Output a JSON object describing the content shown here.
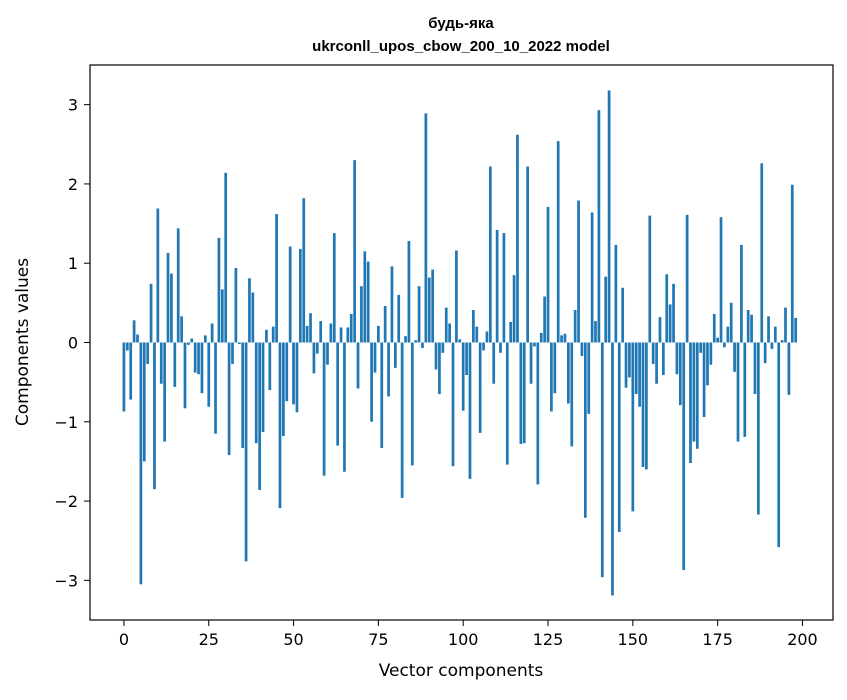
{
  "chart_data": {
    "type": "bar",
    "title_line1": "будь-яка",
    "title_line2": "ukrconll_upos_cbow_200_10_2022 model",
    "xlabel": "Vector components",
    "ylabel": "Components values",
    "xlim": [
      -10,
      209
    ],
    "ylim": [
      -3.5,
      3.5
    ],
    "x_ticks": [
      0,
      25,
      50,
      75,
      100,
      125,
      150,
      175,
      200
    ],
    "x_tick_labels": [
      "0",
      "25",
      "50",
      "75",
      "100",
      "125",
      "150",
      "175",
      "200"
    ],
    "y_ticks": [
      -3,
      -2,
      -1,
      0,
      1,
      2,
      3
    ],
    "y_tick_labels": [
      "−3",
      "−2",
      "−1",
      "0",
      "1",
      "2",
      "3"
    ],
    "bar_color": "#1f77b4",
    "grid": false,
    "values": [
      -0.87,
      -0.1,
      -0.72,
      0.28,
      0.1,
      -3.05,
      -1.5,
      -0.27,
      0.74,
      -1.85,
      1.69,
      -0.52,
      -1.25,
      1.13,
      0.87,
      -0.56,
      1.44,
      0.33,
      -0.83,
      -0.03,
      0.05,
      -0.38,
      -0.4,
      -0.64,
      0.09,
      -0.81,
      0.24,
      -1.15,
      1.32,
      0.67,
      2.14,
      -1.42,
      -0.27,
      0.94,
      -0.02,
      -1.33,
      -2.76,
      0.81,
      0.63,
      -1.27,
      -1.86,
      -1.13,
      0.16,
      -0.6,
      0.2,
      1.62,
      -2.09,
      -1.18,
      -0.74,
      1.21,
      -0.78,
      -0.88,
      1.18,
      1.82,
      0.21,
      0.37,
      -0.39,
      -0.14,
      0.27,
      -1.68,
      -0.28,
      0.24,
      1.38,
      -1.3,
      0.19,
      -1.63,
      0.19,
      0.36,
      2.3,
      -0.58,
      0.71,
      1.15,
      1.02,
      -1.0,
      -0.38,
      0.21,
      -1.33,
      0.46,
      -0.68,
      0.96,
      -0.32,
      0.6,
      -1.96,
      0.08,
      1.28,
      -1.55,
      0.03,
      0.71,
      -0.07,
      2.89,
      0.82,
      0.92,
      -0.34,
      -0.65,
      -0.13,
      0.44,
      0.24,
      -1.56,
      1.16,
      0.04,
      -0.86,
      -0.41,
      -1.72,
      0.41,
      0.2,
      -1.14,
      -0.1,
      0.14,
      2.22,
      -0.52,
      1.42,
      -0.13,
      1.38,
      -1.54,
      0.26,
      0.85,
      2.62,
      -1.28,
      -1.27,
      2.22,
      -0.52,
      -0.05,
      -1.79,
      0.12,
      0.58,
      1.71,
      -0.87,
      -0.64,
      2.54,
      0.09,
      0.11,
      -0.77,
      -1.31,
      0.41,
      1.79,
      -0.17,
      -2.21,
      -0.9,
      1.64,
      0.27,
      2.93,
      -2.96,
      0.83,
      3.18,
      -3.19,
      1.23,
      -2.39,
      0.69,
      -0.57,
      -0.44,
      -2.13,
      -0.65,
      -0.81,
      -1.57,
      -1.6,
      1.6,
      -0.27,
      -0.52,
      0.32,
      -0.41,
      0.86,
      0.48,
      0.74,
      -0.4,
      -0.79,
      -2.87,
      1.61,
      -1.52,
      -1.25,
      -1.34,
      -0.13,
      -0.94,
      -0.54,
      -0.28,
      0.36,
      0.06,
      1.58,
      -0.06,
      0.2,
      0.5,
      -0.37,
      -1.25,
      1.23,
      -1.19,
      0.41,
      0.35,
      -0.65,
      -2.17,
      2.26,
      -0.26,
      0.33,
      -0.08,
      0.2,
      -2.58,
      0.03,
      0.44,
      -0.66,
      1.99,
      0.31
    ]
  }
}
